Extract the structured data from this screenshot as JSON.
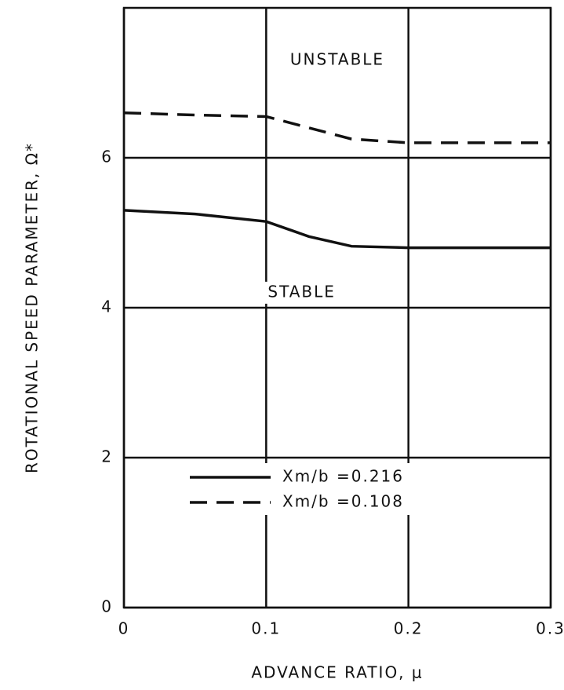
{
  "chart_data": {
    "type": "line",
    "x": [
      0,
      0.05,
      0.1,
      0.13,
      0.16,
      0.2,
      0.3
    ],
    "series": [
      {
        "name": "Xm/b =0.216",
        "color": "#111111",
        "dash": false,
        "values": [
          5.3,
          5.25,
          5.15,
          4.95,
          4.82,
          4.8,
          4.8
        ]
      },
      {
        "name": "Xm/b =0.108",
        "color": "#111111",
        "dash": true,
        "values": [
          6.6,
          6.57,
          6.55,
          6.4,
          6.25,
          6.2,
          6.2
        ]
      }
    ],
    "xlabel": "ADVANCE RATIO, μ",
    "ylabel": "ROTATIONAL SPEED PARAMETER, Ω*",
    "annotations": [
      {
        "text": "UNSTABLE",
        "x": 0.15,
        "y": 7.3
      },
      {
        "text": "STABLE",
        "x": 0.125,
        "y": 4.2
      }
    ],
    "xlim": [
      0,
      0.3
    ],
    "xticks": [
      0,
      0.1,
      0.2,
      0.3
    ],
    "ylim": [
      0,
      8
    ],
    "yticks": [
      0,
      2,
      4,
      6
    ],
    "grid": true
  }
}
